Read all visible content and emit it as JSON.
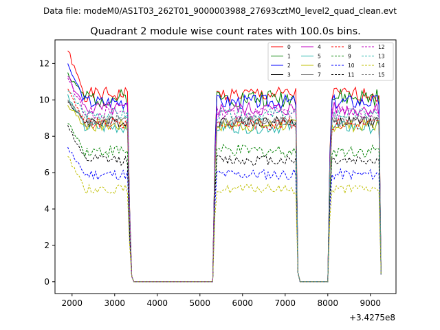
{
  "suptitle": "Data file: modeM0/AS1T03_262T01_9000003988_27693cztM0_level2_quad_clean.evt",
  "chart_data": {
    "type": "line",
    "title": "Quadrant 2 module wise count rates with 100.0s bins.",
    "xlabel": "",
    "ylabel": "",
    "x_offset_label": "+3.4275e8",
    "xlim": [
      1600,
      9600
    ],
    "ylim": [
      -0.65,
      13.3
    ],
    "xticks": [
      2000,
      3000,
      4000,
      5000,
      6000,
      7000,
      8000,
      9000
    ],
    "yticks": [
      0,
      2,
      4,
      6,
      8,
      10,
      12
    ],
    "legend_position": "top-right",
    "segments": [
      [
        1900,
        3400
      ],
      [
        5350,
        7300
      ],
      [
        8050,
        9250
      ]
    ],
    "series": [
      {
        "name": "0",
        "color": "#ff0000",
        "dash": "solid",
        "level": 10.3,
        "first": 12.7,
        "amp": 0.4,
        "seed": 1
      },
      {
        "name": "1",
        "color": "#008000",
        "dash": "solid",
        "level": 10.1,
        "first": 11.5,
        "amp": 0.5,
        "seed": 2
      },
      {
        "name": "2",
        "color": "#0000ff",
        "dash": "solid",
        "level": 9.9,
        "first": 12.0,
        "amp": 0.4,
        "seed": 3
      },
      {
        "name": "3",
        "color": "#000000",
        "dash": "solid",
        "level": 8.8,
        "first": 9.9,
        "amp": 0.3,
        "seed": 4
      },
      {
        "name": "4",
        "color": "#c000c0",
        "dash": "solid",
        "level": 9.5,
        "first": 11.3,
        "amp": 0.4,
        "seed": 5
      },
      {
        "name": "5",
        "color": "#20b2aa",
        "dash": "solid",
        "level": 8.5,
        "first": 10.3,
        "amp": 0.35,
        "seed": 6
      },
      {
        "name": "6",
        "color": "#bfbf00",
        "dash": "solid",
        "level": 8.6,
        "first": 9.7,
        "amp": 0.35,
        "seed": 7
      },
      {
        "name": "7",
        "color": "#808080",
        "dash": "solid",
        "level": 8.8,
        "first": 10.0,
        "amp": 0.3,
        "seed": 8
      },
      {
        "name": "8",
        "color": "#ff0000",
        "dash": "dashed",
        "level": 8.7,
        "first": 10.6,
        "amp": 0.35,
        "seed": 9
      },
      {
        "name": "9",
        "color": "#008000",
        "dash": "dashed",
        "level": 7.2,
        "first": 8.7,
        "amp": 0.35,
        "seed": 10
      },
      {
        "name": "10",
        "color": "#0000ff",
        "dash": "dashed",
        "level": 5.9,
        "first": 7.4,
        "amp": 0.3,
        "seed": 11
      },
      {
        "name": "11",
        "color": "#000000",
        "dash": "dashed",
        "level": 6.7,
        "first": 8.6,
        "amp": 0.3,
        "seed": 12
      },
      {
        "name": "12",
        "color": "#c000c0",
        "dash": "dashed",
        "level": 9.3,
        "first": 11.2,
        "amp": 0.35,
        "seed": 13
      },
      {
        "name": "13",
        "color": "#20b2aa",
        "dash": "dashed",
        "level": 9.2,
        "first": 10.5,
        "amp": 0.35,
        "seed": 14
      },
      {
        "name": "14",
        "color": "#bfbf00",
        "dash": "dashed",
        "level": 5.1,
        "first": 6.9,
        "amp": 0.25,
        "seed": 15
      },
      {
        "name": "15",
        "color": "#808080",
        "dash": "dashed",
        "level": 8.9,
        "first": 10.0,
        "amp": 0.3,
        "seed": 16
      }
    ]
  }
}
